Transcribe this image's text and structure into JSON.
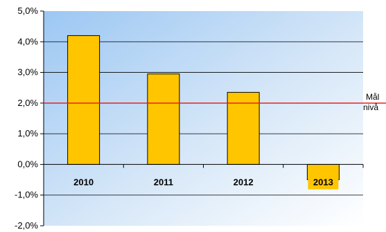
{
  "chart_data": {
    "type": "bar",
    "categories": [
      "2010",
      "2011",
      "2012",
      "2013"
    ],
    "values": [
      4.2,
      2.95,
      2.35,
      -0.5
    ],
    "ylim": [
      -2.0,
      5.0
    ],
    "yticks": [
      "5,0%",
      "4,0%",
      "3,0%",
      "2,0%",
      "1,0%",
      "0,0%",
      "-1,0%",
      "-2,0%"
    ],
    "grid": true,
    "target_line": {
      "value": 2.0,
      "label_line1": "Mål",
      "label_line2": "nivå",
      "color": "#e8201f"
    },
    "bar_color": "#ffc600",
    "highlight_category_label": "2013",
    "highlight_label_bg": "#ffc600"
  }
}
